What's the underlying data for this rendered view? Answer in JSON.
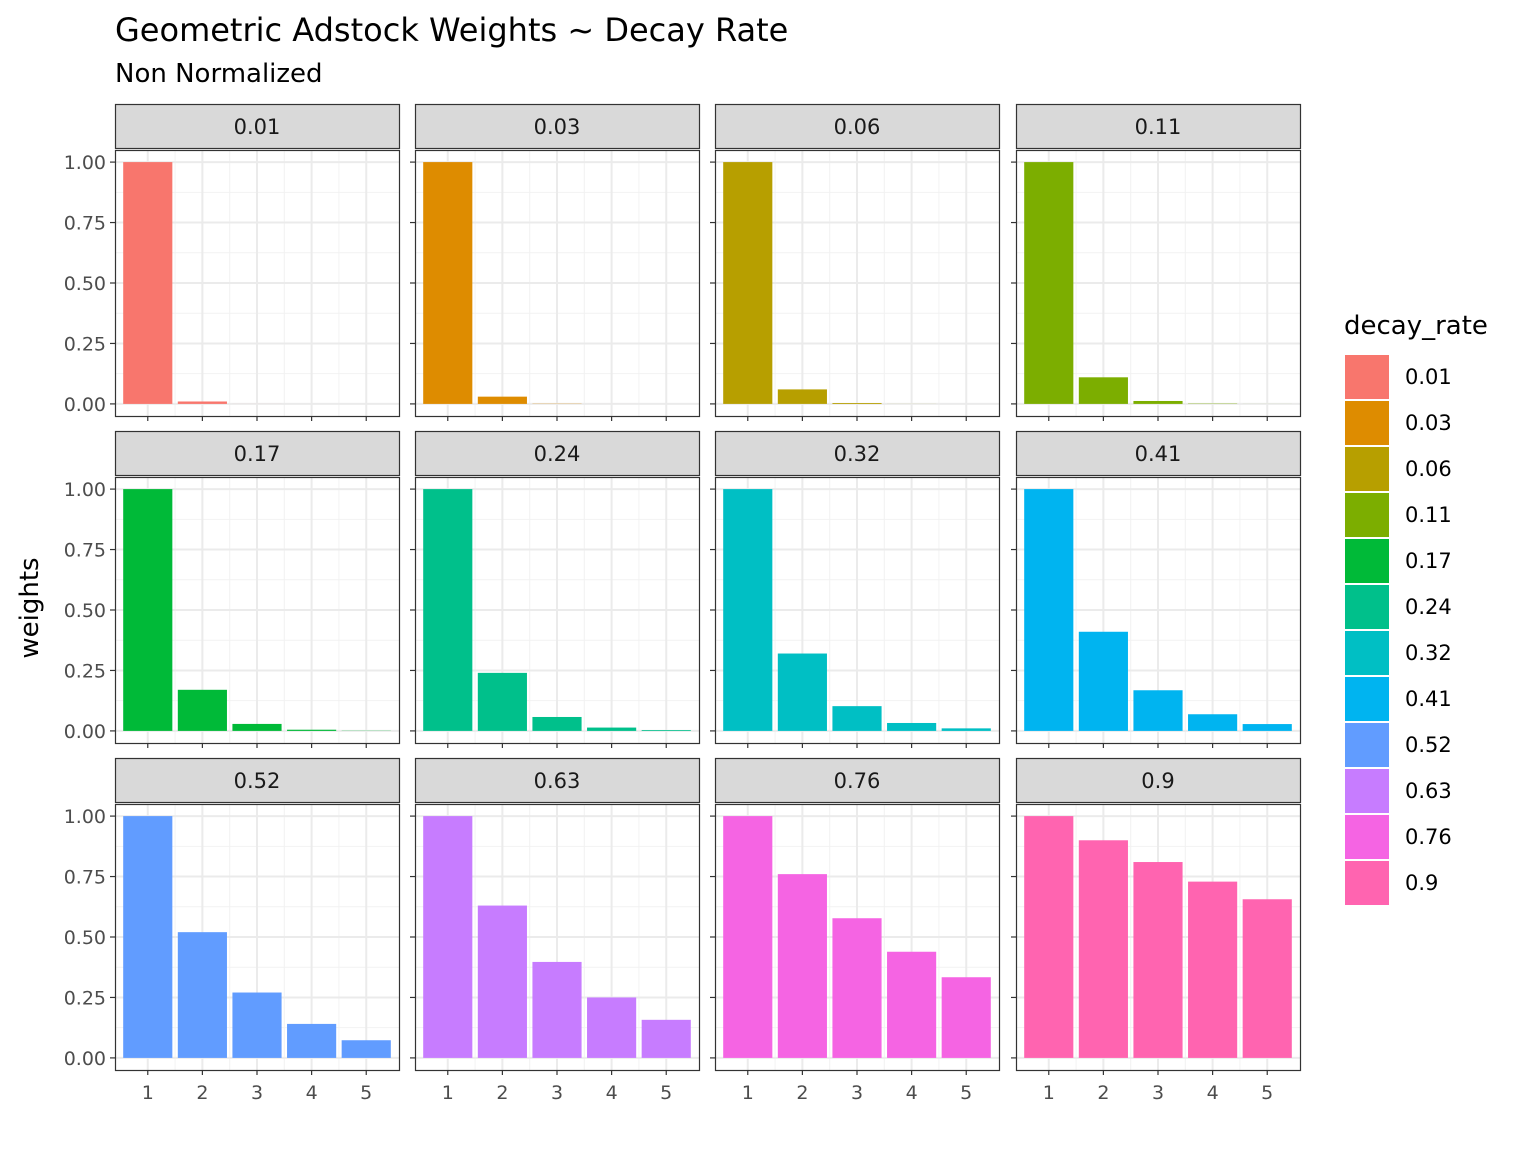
{
  "chart_data": {
    "type": "bar",
    "title": "Geometric Adstock Weights ~ Decay Rate",
    "subtitle": "Non Normalized",
    "xlabel": "",
    "ylabel": "weights",
    "x": [
      "1",
      "2",
      "3",
      "4",
      "5"
    ],
    "ylim": [
      -0.05,
      1.05
    ],
    "y_ticks": [
      "0.00",
      "0.25",
      "0.50",
      "0.75",
      "1.00"
    ],
    "y_tick_values": [
      0,
      0.25,
      0.5,
      0.75,
      1
    ],
    "legend": {
      "title": "decay_rate",
      "position": "right"
    },
    "facets": [
      {
        "label": "0.01",
        "color": "#F8766D",
        "values": [
          1,
          0.01,
          0.0001,
          1e-06,
          1e-08
        ]
      },
      {
        "label": "0.03",
        "color": "#DE8C00",
        "values": [
          1,
          0.03,
          0.0009,
          2.7e-05,
          8.1e-07
        ]
      },
      {
        "label": "0.06",
        "color": "#B79F00",
        "values": [
          1,
          0.06,
          0.0036,
          0.000216,
          1.3e-05
        ]
      },
      {
        "label": "0.11",
        "color": "#7CAE00",
        "values": [
          1,
          0.11,
          0.0121,
          0.00133,
          0.000146
        ]
      },
      {
        "label": "0.17",
        "color": "#00BA38",
        "values": [
          1,
          0.17,
          0.0289,
          0.00491,
          0.000835
        ]
      },
      {
        "label": "0.24",
        "color": "#00C08B",
        "values": [
          1,
          0.24,
          0.0576,
          0.0138,
          0.00332
        ]
      },
      {
        "label": "0.32",
        "color": "#00BFC4",
        "values": [
          1,
          0.32,
          0.1024,
          0.0328,
          0.0105
        ]
      },
      {
        "label": "0.41",
        "color": "#00B4F0",
        "values": [
          1,
          0.41,
          0.1681,
          0.0689,
          0.0283
        ]
      },
      {
        "label": "0.52",
        "color": "#619CFF",
        "values": [
          1,
          0.52,
          0.2704,
          0.1406,
          0.0731
        ]
      },
      {
        "label": "0.63",
        "color": "#C77CFF",
        "values": [
          1,
          0.63,
          0.3969,
          0.25,
          0.1575
        ]
      },
      {
        "label": "0.76",
        "color": "#F564E3",
        "values": [
          1,
          0.76,
          0.5776,
          0.439,
          0.3336
        ]
      },
      {
        "label": "0.9",
        "color": "#FF64B0",
        "values": [
          1,
          0.9,
          0.81,
          0.729,
          0.6561
        ]
      }
    ]
  }
}
